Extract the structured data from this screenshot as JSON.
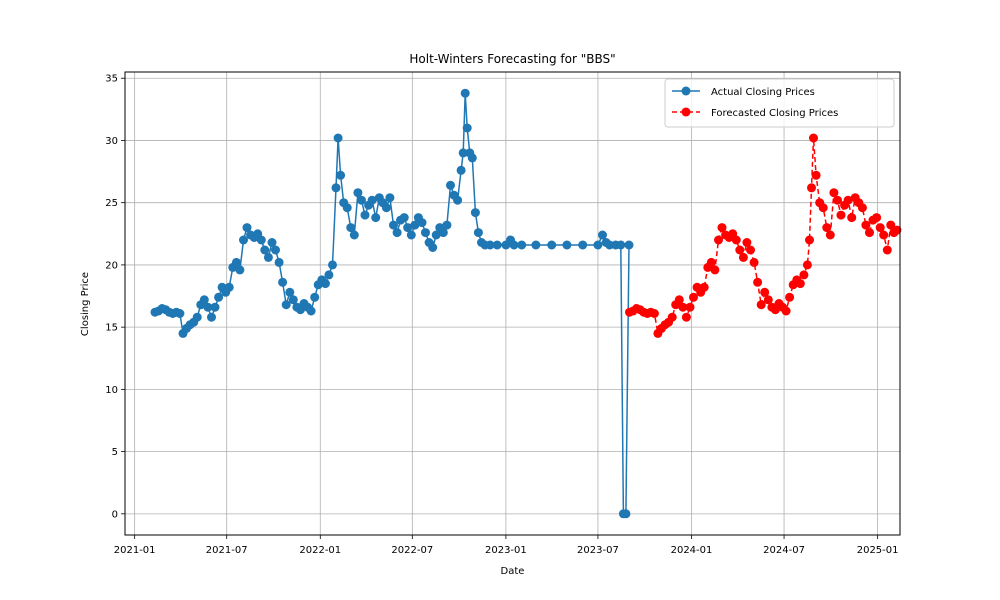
{
  "chart_data": {
    "type": "line",
    "title": "Holt-Winters Forecasting for \"BBS\"",
    "xlabel": "Date",
    "ylabel": "Closing Price",
    "xlim": [
      "2020-12-13",
      "2025-02-14"
    ],
    "ylim": [
      -1.7,
      35.5
    ],
    "x_ticks": [
      "2021-01",
      "2021-07",
      "2022-01",
      "2022-07",
      "2023-01",
      "2023-07",
      "2024-01",
      "2024-07",
      "2025-01"
    ],
    "y_ticks": [
      0,
      5,
      10,
      15,
      20,
      25,
      30,
      35
    ],
    "grid": true,
    "legend_position": "top-right",
    "series": [
      {
        "name": "Actual Closing Prices",
        "color": "#1f77b4",
        "line_style": "solid",
        "marker": "circle",
        "points": [
          [
            "2021-02-10",
            16.2
          ],
          [
            "2021-02-17",
            16.3
          ],
          [
            "2021-02-24",
            16.5
          ],
          [
            "2021-03-03",
            16.4
          ],
          [
            "2021-03-10",
            16.2
          ],
          [
            "2021-03-17",
            16.1
          ],
          [
            "2021-03-24",
            16.2
          ],
          [
            "2021-03-31",
            16.1
          ],
          [
            "2021-04-06",
            14.5
          ],
          [
            "2021-04-13",
            14.9
          ],
          [
            "2021-04-20",
            15.2
          ],
          [
            "2021-04-27",
            15.4
          ],
          [
            "2021-05-04",
            15.8
          ],
          [
            "2021-05-11",
            16.8
          ],
          [
            "2021-05-18",
            17.2
          ],
          [
            "2021-05-25",
            16.6
          ],
          [
            "2021-06-01",
            15.8
          ],
          [
            "2021-06-08",
            16.6
          ],
          [
            "2021-06-15",
            17.4
          ],
          [
            "2021-06-22",
            18.2
          ],
          [
            "2021-06-29",
            17.8
          ],
          [
            "2021-07-06",
            18.2
          ],
          [
            "2021-07-13",
            19.8
          ],
          [
            "2021-07-20",
            20.2
          ],
          [
            "2021-07-27",
            19.6
          ],
          [
            "2021-08-03",
            22.0
          ],
          [
            "2021-08-10",
            23.0
          ],
          [
            "2021-08-17",
            22.4
          ],
          [
            "2021-08-24",
            22.2
          ],
          [
            "2021-08-31",
            22.5
          ],
          [
            "2021-09-07",
            22.0
          ],
          [
            "2021-09-14",
            21.2
          ],
          [
            "2021-09-21",
            20.6
          ],
          [
            "2021-09-28",
            21.8
          ],
          [
            "2021-10-05",
            21.2
          ],
          [
            "2021-10-12",
            20.2
          ],
          [
            "2021-10-19",
            18.6
          ],
          [
            "2021-10-26",
            16.8
          ],
          [
            "2021-11-02",
            17.8
          ],
          [
            "2021-11-09",
            17.2
          ],
          [
            "2021-11-16",
            16.6
          ],
          [
            "2021-11-23",
            16.4
          ],
          [
            "2021-11-30",
            16.9
          ],
          [
            "2021-12-07",
            16.6
          ],
          [
            "2021-12-14",
            16.3
          ],
          [
            "2021-12-21",
            17.4
          ],
          [
            "2021-12-28",
            18.4
          ],
          [
            "2022-01-04",
            18.8
          ],
          [
            "2022-01-11",
            18.5
          ],
          [
            "2022-01-18",
            19.2
          ],
          [
            "2022-01-25",
            20.0
          ],
          [
            "2022-02-01",
            26.2
          ],
          [
            "2022-02-05",
            30.2
          ],
          [
            "2022-02-10",
            27.2
          ],
          [
            "2022-02-16",
            25.0
          ],
          [
            "2022-02-23",
            24.6
          ],
          [
            "2022-03-02",
            23.0
          ],
          [
            "2022-03-09",
            22.4
          ],
          [
            "2022-03-16",
            25.8
          ],
          [
            "2022-03-23",
            25.2
          ],
          [
            "2022-03-30",
            24.0
          ],
          [
            "2022-04-06",
            24.8
          ],
          [
            "2022-04-13",
            25.2
          ],
          [
            "2022-04-20",
            23.8
          ],
          [
            "2022-04-27",
            25.4
          ],
          [
            "2022-05-04",
            25.0
          ],
          [
            "2022-05-11",
            24.6
          ],
          [
            "2022-05-18",
            25.4
          ],
          [
            "2022-05-25",
            23.2
          ],
          [
            "2022-06-01",
            22.6
          ],
          [
            "2022-06-08",
            23.6
          ],
          [
            "2022-06-15",
            23.8
          ],
          [
            "2022-06-22",
            23.0
          ],
          [
            "2022-06-29",
            22.4
          ],
          [
            "2022-07-06",
            23.2
          ],
          [
            "2022-07-13",
            23.8
          ],
          [
            "2022-07-20",
            23.4
          ],
          [
            "2022-07-27",
            22.6
          ],
          [
            "2022-08-03",
            21.8
          ],
          [
            "2022-08-10",
            21.4
          ],
          [
            "2022-08-17",
            22.4
          ],
          [
            "2022-08-24",
            23.0
          ],
          [
            "2022-08-31",
            22.6
          ],
          [
            "2022-09-07",
            23.2
          ],
          [
            "2022-09-14",
            26.4
          ],
          [
            "2022-09-21",
            25.6
          ],
          [
            "2022-09-28",
            25.2
          ],
          [
            "2022-10-05",
            27.6
          ],
          [
            "2022-10-09",
            29.0
          ],
          [
            "2022-10-13",
            33.8
          ],
          [
            "2022-10-17",
            31.0
          ],
          [
            "2022-10-22",
            29.0
          ],
          [
            "2022-10-27",
            28.6
          ],
          [
            "2022-11-02",
            24.2
          ],
          [
            "2022-11-08",
            22.6
          ],
          [
            "2022-11-14",
            21.8
          ],
          [
            "2022-11-21",
            21.6
          ],
          [
            "2022-12-01",
            21.6
          ],
          [
            "2022-12-15",
            21.6
          ],
          [
            "2023-01-01",
            21.6
          ],
          [
            "2023-01-10",
            22.0
          ],
          [
            "2023-01-17",
            21.6
          ],
          [
            "2023-02-01",
            21.6
          ],
          [
            "2023-03-01",
            21.6
          ],
          [
            "2023-04-01",
            21.6
          ],
          [
            "2023-05-01",
            21.6
          ],
          [
            "2023-06-01",
            21.6
          ],
          [
            "2023-07-01",
            21.6
          ],
          [
            "2023-07-10",
            22.4
          ],
          [
            "2023-07-17",
            21.8
          ],
          [
            "2023-07-24",
            21.6
          ],
          [
            "2023-08-05",
            21.6
          ],
          [
            "2023-08-15",
            21.6
          ],
          [
            "2023-08-20",
            0.0
          ],
          [
            "2023-08-25",
            0.0
          ],
          [
            "2023-08-31",
            21.6
          ]
        ]
      },
      {
        "name": "Forecasted Closing Prices",
        "color": "#ff0000",
        "line_style": "dashed",
        "marker": "circle",
        "points": [
          [
            "2023-09-01",
            16.2
          ],
          [
            "2023-09-08",
            16.3
          ],
          [
            "2023-09-15",
            16.5
          ],
          [
            "2023-09-22",
            16.4
          ],
          [
            "2023-09-29",
            16.2
          ],
          [
            "2023-10-06",
            16.1
          ],
          [
            "2023-10-13",
            16.2
          ],
          [
            "2023-10-20",
            16.1
          ],
          [
            "2023-10-27",
            14.5
          ],
          [
            "2023-11-03",
            14.9
          ],
          [
            "2023-11-10",
            15.2
          ],
          [
            "2023-11-17",
            15.4
          ],
          [
            "2023-11-24",
            15.8
          ],
          [
            "2023-12-01",
            16.8
          ],
          [
            "2023-12-08",
            17.2
          ],
          [
            "2023-12-15",
            16.6
          ],
          [
            "2023-12-22",
            15.8
          ],
          [
            "2023-12-29",
            16.6
          ],
          [
            "2024-01-05",
            17.4
          ],
          [
            "2024-01-12",
            18.2
          ],
          [
            "2024-01-19",
            17.8
          ],
          [
            "2024-01-26",
            18.2
          ],
          [
            "2024-02-02",
            19.8
          ],
          [
            "2024-02-09",
            20.2
          ],
          [
            "2024-02-16",
            19.6
          ],
          [
            "2024-02-23",
            22.0
          ],
          [
            "2024-03-01",
            23.0
          ],
          [
            "2024-03-08",
            22.4
          ],
          [
            "2024-03-15",
            22.2
          ],
          [
            "2024-03-22",
            22.5
          ],
          [
            "2024-03-29",
            22.0
          ],
          [
            "2024-04-05",
            21.2
          ],
          [
            "2024-04-12",
            20.6
          ],
          [
            "2024-04-19",
            21.8
          ],
          [
            "2024-04-26",
            21.2
          ],
          [
            "2024-05-03",
            20.2
          ],
          [
            "2024-05-10",
            18.6
          ],
          [
            "2024-05-17",
            16.8
          ],
          [
            "2024-05-24",
            17.8
          ],
          [
            "2024-05-31",
            17.2
          ],
          [
            "2024-06-07",
            16.6
          ],
          [
            "2024-06-14",
            16.4
          ],
          [
            "2024-06-21",
            16.9
          ],
          [
            "2024-06-28",
            16.6
          ],
          [
            "2024-07-05",
            16.3
          ],
          [
            "2024-07-12",
            17.4
          ],
          [
            "2024-07-19",
            18.4
          ],
          [
            "2024-07-26",
            18.8
          ],
          [
            "2024-08-02",
            18.5
          ],
          [
            "2024-08-09",
            19.2
          ],
          [
            "2024-08-16",
            20.0
          ],
          [
            "2024-08-20",
            22.0
          ],
          [
            "2024-08-24",
            26.2
          ],
          [
            "2024-08-28",
            30.2
          ],
          [
            "2024-09-02",
            27.2
          ],
          [
            "2024-09-09",
            25.0
          ],
          [
            "2024-09-16",
            24.6
          ],
          [
            "2024-09-23",
            23.0
          ],
          [
            "2024-09-30",
            22.4
          ],
          [
            "2024-10-07",
            25.8
          ],
          [
            "2024-10-14",
            25.2
          ],
          [
            "2024-10-21",
            24.0
          ],
          [
            "2024-10-28",
            24.8
          ],
          [
            "2024-11-04",
            25.2
          ],
          [
            "2024-11-11",
            23.8
          ],
          [
            "2024-11-18",
            25.4
          ],
          [
            "2024-11-25",
            25.0
          ],
          [
            "2024-12-02",
            24.6
          ],
          [
            "2024-12-09",
            23.2
          ],
          [
            "2024-12-16",
            22.6
          ],
          [
            "2024-12-23",
            23.6
          ],
          [
            "2024-12-30",
            23.8
          ],
          [
            "2025-01-06",
            23.0
          ],
          [
            "2025-01-13",
            22.4
          ],
          [
            "2025-01-20",
            21.2
          ],
          [
            "2025-01-27",
            23.2
          ],
          [
            "2025-02-02",
            22.6
          ],
          [
            "2025-02-08",
            22.8
          ]
        ]
      }
    ]
  }
}
